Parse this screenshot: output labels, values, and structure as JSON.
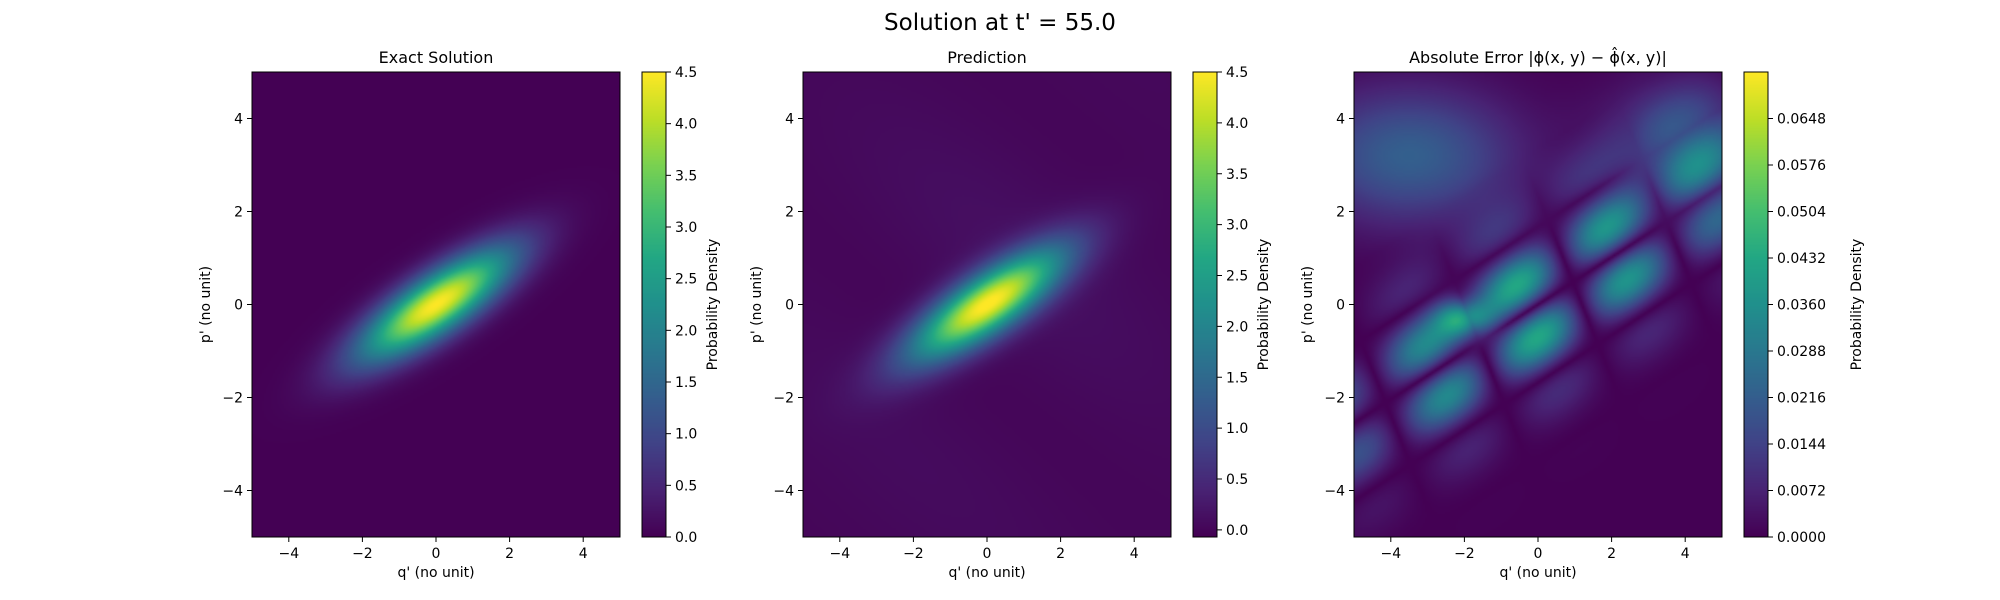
{
  "figure": {
    "suptitle": "Solution at t' = 55.0"
  },
  "chart_data": [
    {
      "type": "heatmap",
      "title": "Exact Solution",
      "xlabel": "q' (no unit)",
      "ylabel": "p' (no unit)",
      "xlim": [
        -5,
        5
      ],
      "ylim": [
        -5,
        5
      ],
      "xticks": [
        -4,
        -2,
        0,
        2,
        4
      ],
      "yticks": [
        -4,
        -2,
        0,
        2,
        4
      ],
      "xtick_labels": [
        "−4",
        "−2",
        "0",
        "2",
        "4"
      ],
      "ytick_labels": [
        "−4",
        "−2",
        "0",
        "2",
        "4"
      ],
      "colormap": "viridis",
      "colorbar": {
        "label": "Probability Density",
        "range": [
          0.0,
          4.5
        ],
        "ticks": [
          0.0,
          0.5,
          1.0,
          1.5,
          2.0,
          2.5,
          3.0,
          3.5,
          4.0,
          4.5
        ],
        "tick_labels": [
          "0.0",
          "0.5",
          "1.0",
          "1.5",
          "2.0",
          "2.5",
          "3.0",
          "3.5",
          "4.0",
          "4.5"
        ]
      },
      "field": {
        "kind": "gaussian",
        "peak": 4.5,
        "center": [
          0,
          0
        ],
        "major_axis_angle_deg": 27,
        "sigma_major": 1.6,
        "sigma_minor": 0.45
      }
    },
    {
      "type": "heatmap",
      "title": "Prediction",
      "xlabel": "q' (no unit)",
      "ylabel": "p' (no unit)",
      "xlim": [
        -5,
        5
      ],
      "ylim": [
        -5,
        5
      ],
      "xticks": [
        -4,
        -2,
        0,
        2,
        4
      ],
      "yticks": [
        -4,
        -2,
        0,
        2,
        4
      ],
      "xtick_labels": [
        "−4",
        "−2",
        "0",
        "2",
        "4"
      ],
      "ytick_labels": [
        "−4",
        "−2",
        "0",
        "2",
        "4"
      ],
      "colormap": "viridis",
      "colorbar": {
        "label": "Probability Density",
        "range": [
          -0.07,
          4.5
        ],
        "ticks": [
          0.0,
          0.5,
          1.0,
          1.5,
          2.0,
          2.5,
          3.0,
          3.5,
          4.0,
          4.5
        ],
        "tick_labels": [
          "0.0",
          "0.5",
          "1.0",
          "1.5",
          "2.0",
          "2.5",
          "3.0",
          "3.5",
          "4.0",
          "4.5"
        ]
      },
      "field": {
        "kind": "gaussian",
        "peak": 4.5,
        "center": [
          0,
          0
        ],
        "major_axis_angle_deg": 27,
        "sigma_major": 1.6,
        "sigma_minor": 0.45,
        "background": 0.12
      }
    },
    {
      "type": "heatmap",
      "title": "Absolute Error |ϕ(x, y) − ϕ̂(x, y)|",
      "xlabel": "q' (no unit)",
      "ylabel": "p' (no unit)",
      "xlim": [
        -5,
        5
      ],
      "ylim": [
        -5,
        5
      ],
      "xticks": [
        -4,
        -2,
        0,
        2,
        4
      ],
      "yticks": [
        -4,
        -2,
        0,
        2,
        4
      ],
      "xtick_labels": [
        "−4",
        "−2",
        "0",
        "2",
        "4"
      ],
      "ytick_labels": [
        "−4",
        "−2",
        "0",
        "2",
        "4"
      ],
      "colormap": "viridis",
      "colorbar": {
        "label": "Probability Density",
        "range": [
          0.0,
          0.072
        ],
        "ticks": [
          0.0,
          0.0072,
          0.0144,
          0.0216,
          0.0288,
          0.036,
          0.0432,
          0.0504,
          0.0576,
          0.0648
        ],
        "tick_labels": [
          "0.0000",
          "0.0072",
          "0.0144",
          "0.0216",
          "0.0288",
          "0.0360",
          "0.0432",
          "0.0504",
          "0.0576",
          "0.0648"
        ]
      },
      "field": {
        "kind": "error-bands",
        "peak": 0.07,
        "peak_location": [
          -2,
          -0.3
        ],
        "major_axis_angle_deg": 27
      }
    }
  ]
}
